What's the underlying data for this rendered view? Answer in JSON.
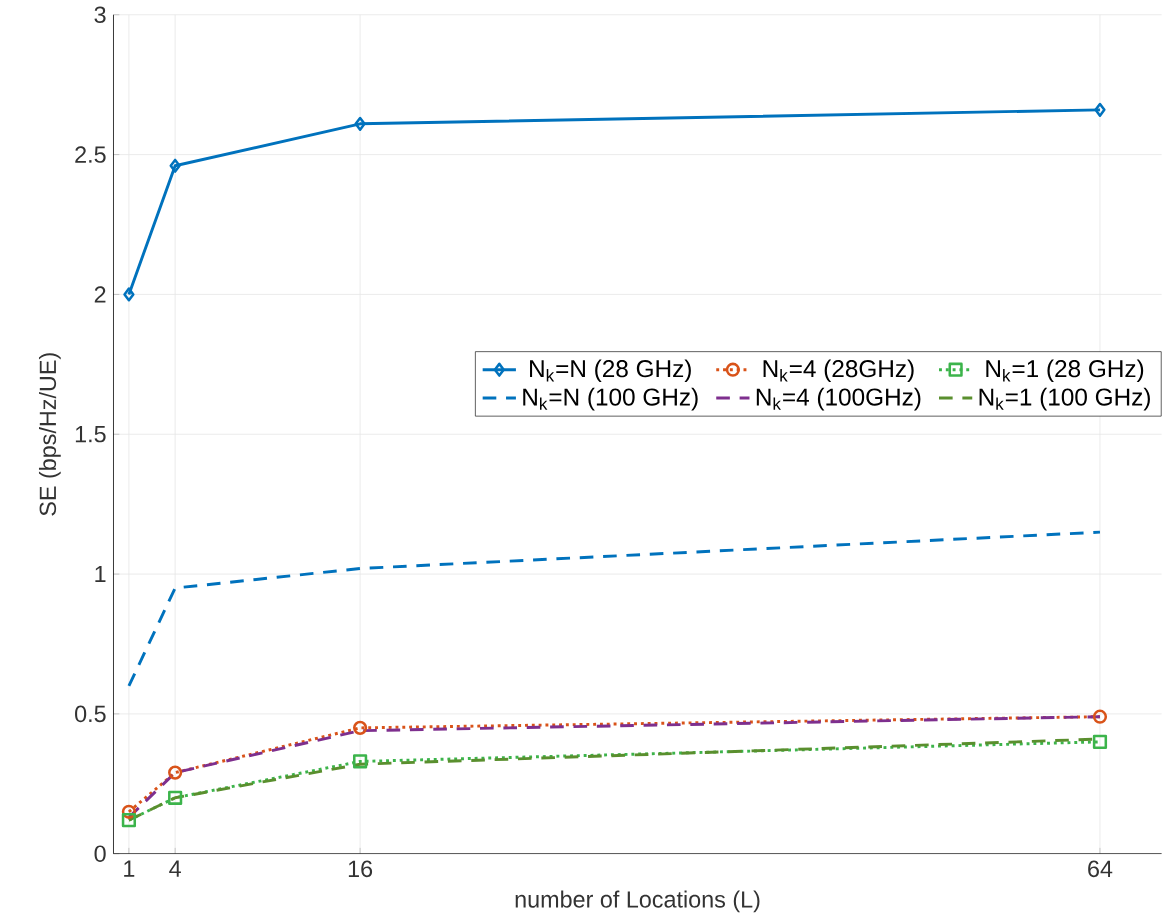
{
  "chart_data": {
    "type": "line",
    "xlabel": "number of Locations (L)",
    "ylabel": "SE (bps/Hz/UE)",
    "x": [
      1,
      4,
      16,
      64
    ],
    "xlim": [
      0,
      68
    ],
    "xticks": [
      1,
      4,
      16,
      64
    ],
    "ylim": [
      0,
      3
    ],
    "yticks": [
      0,
      0.5,
      1,
      1.5,
      2,
      2.5,
      3
    ],
    "grid": true,
    "legend": "right",
    "series": [
      {
        "name": "N$_{k}$=N (28 GHz)",
        "color": "#0072bd",
        "values": [
          2.0,
          2.46,
          2.61,
          2.66
        ],
        "marker": "diamond",
        "line_style": "solid"
      },
      {
        "name": "N$_{k}$=4 (28GHz)",
        "color": "#d95319",
        "values": [
          0.15,
          0.29,
          0.45,
          0.49
        ],
        "marker": "circle",
        "line_style": "dotted"
      },
      {
        "name": "N$_{k}$=1 (28 GHz)",
        "color": "#3cb44b",
        "values": [
          0.12,
          0.2,
          0.33,
          0.4
        ],
        "marker": "square",
        "line_style": "dotted"
      },
      {
        "name": "N$_{k}$=N (100 GHz)",
        "color": "#0072bd",
        "values": [
          0.6,
          0.95,
          1.02,
          1.15
        ],
        "marker": "none",
        "line_style": "dashed"
      },
      {
        "name": "N$_{k}$=4 (100GHz)",
        "color": "#7e2f8e",
        "values": [
          0.13,
          0.29,
          0.44,
          0.49
        ],
        "marker": "none",
        "line_style": "dashed"
      },
      {
        "name": "N$_{k}$=1 (100 GHz)",
        "color": "#5a8f2e",
        "values": [
          0.12,
          0.2,
          0.32,
          0.41
        ],
        "marker": "none",
        "line_style": "dashed"
      }
    ]
  }
}
